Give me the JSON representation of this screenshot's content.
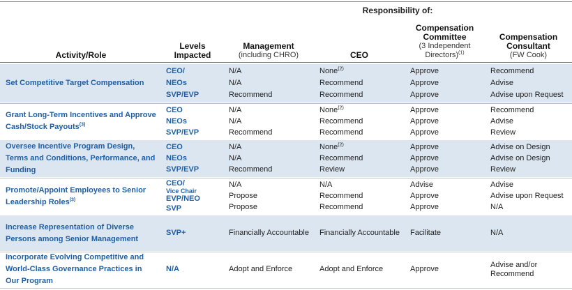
{
  "header": {
    "group": "Responsibility of:",
    "columns": [
      {
        "title": "Activity/Role"
      },
      {
        "title": "Levels Impacted"
      },
      {
        "title": "Management",
        "sub": "(including CHRO)"
      },
      {
        "title": "CEO"
      },
      {
        "title": "Compensation Committee",
        "sub": "(3 Independent Directors)",
        "sup": "(1)"
      },
      {
        "title": "Compensation Consultant",
        "sub": "(FW Cook)"
      }
    ]
  },
  "rows": [
    {
      "activity": "Set Competitive Target Compensation",
      "levels": [
        "CEO/",
        "NEOs",
        "SVP/EVP"
      ],
      "management": [
        "N/A",
        "N/A",
        "Recommend"
      ],
      "ceo": [
        {
          "text": "None",
          "sup": "(2)"
        },
        "Recommend",
        "Recommend"
      ],
      "committee": [
        "Approve",
        "Approve",
        "Approve"
      ],
      "consultant": [
        "Recommend",
        "Advise",
        "Advise upon Request"
      ]
    },
    {
      "activity": {
        "text": "Grant Long-Term Incentives and Approve Cash/Stock Payouts",
        "sup": "(3)"
      },
      "levels": [
        "CEO",
        "NEOs",
        "SVP/EVP"
      ],
      "management": [
        "N/A",
        "N/A",
        "Recommend"
      ],
      "ceo": [
        {
          "text": "None",
          "sup": "(2)"
        },
        "Recommend",
        "Recommend"
      ],
      "committee": [
        "Approve",
        "Approve",
        "Approve"
      ],
      "consultant": [
        "Recommend",
        "Advise",
        "Review"
      ]
    },
    {
      "activity": "Oversee Incentive Program Design, Terms and Conditions, Performance, and Funding",
      "levels": [
        "CEO",
        "NEOs",
        "SVP/EVP"
      ],
      "management": [
        "N/A",
        "N/A",
        "Recommend"
      ],
      "ceo": [
        {
          "text": "None",
          "sup": "(2)"
        },
        "Recommend",
        "Review"
      ],
      "committee": [
        "Approve",
        "Approve",
        "Approve"
      ],
      "consultant": [
        "Advise on Design",
        "Advise on Design",
        "Review"
      ]
    },
    {
      "activity": {
        "text": "Promote/Appoint Employees to Senior Leadership Roles",
        "sup": "(3)"
      },
      "levels": [
        {
          "text": "CEO/",
          "small": "Vice Chair"
        },
        "EVP/NEO",
        "SVP"
      ],
      "management": [
        "N/A",
        "Propose",
        "Propose"
      ],
      "ceo": [
        "N/A",
        "Recommend",
        "Recommend"
      ],
      "committee": [
        "Advise",
        "Approve",
        "Approve"
      ],
      "consultant": [
        "Advise",
        "Advise upon Request",
        "N/A"
      ]
    },
    {
      "activity": "Increase Representation of Diverse Persons among Senior Management",
      "levels": [
        "SVP+"
      ],
      "management": [
        "Financially Accountable"
      ],
      "ceo": [
        "Financially Accountable"
      ],
      "committee": [
        "Facilitate"
      ],
      "consultant": [
        "N/A"
      ]
    },
    {
      "activity": "Incorporate Evolving Competitive and World-Class Governance Practices in Our Program",
      "levels": [
        "N/A"
      ],
      "management": [
        "Adopt and Enforce"
      ],
      "ceo": [
        "Adopt and Enforce"
      ],
      "committee": [
        "Approve"
      ],
      "consultant": [
        "Advise and/or Recommend"
      ]
    }
  ]
}
